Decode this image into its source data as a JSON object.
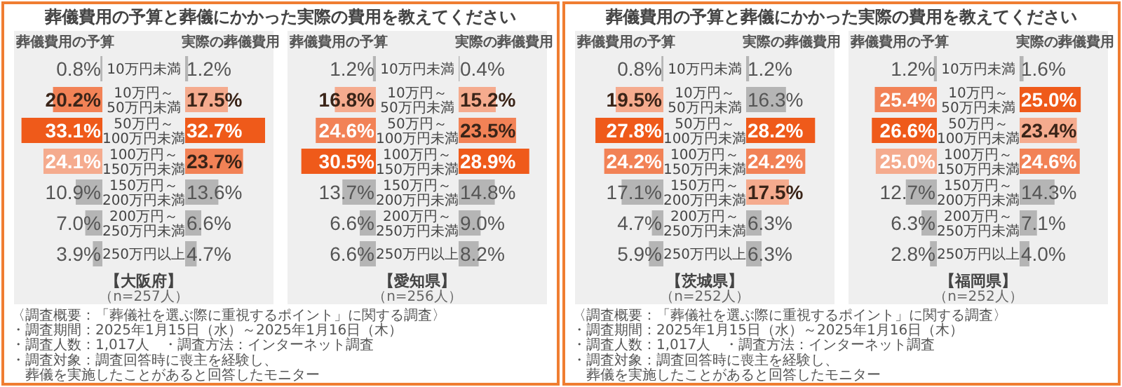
{
  "chart_data": [
    {
      "type": "bar",
      "orientation": "horizontal",
      "title": "葬儀費用の予算と葬儀にかかった実際の費用を教えてください",
      "xlabel": "葬儀費用の予算",
      "tick_labels": "y",
      "xlim": [
        35,
        0
      ],
      "categories": [
        "10万円未満",
        "10万円～50万円未満",
        "50万円～100万円未満",
        "100万円～150万円未満",
        "150万円～200万円未満",
        "200万円～250万円未満",
        "250万円以上"
      ],
      "values": [
        0.8,
        20.2,
        33.1,
        24.1,
        10.9,
        7.0,
        3.9
      ],
      "value_labels": [
        "0.8%",
        "20.2%",
        "33.1%",
        "24.1%",
        "10.9%",
        "7.0%",
        "3.9%"
      ],
      "colors": [
        "#b5b5b5",
        "#f28256",
        "#ef5a1a",
        "#f5ab8e",
        "#b5b5b5",
        "#b5b5b5",
        "#b5b5b5"
      ]
    },
    {
      "type": "bar",
      "orientation": "horizontal",
      "xlabel": "実際の葬儀費用",
      "tick_labels": false,
      "xlim": [
        0,
        35
      ],
      "categories": [
        null,
        null,
        null,
        null,
        null,
        null,
        null
      ],
      "values": [
        1.2,
        17.5,
        32.7,
        23.7,
        13.6,
        6.6,
        4.7
      ],
      "value_labels": [
        "1.2%",
        "17.5%",
        "32.7%",
        "23.7%",
        "13.6%",
        "6.6%",
        "4.7%"
      ],
      "colors": [
        "#b5b5b5",
        "#f5ab8e",
        "#ef5a1a",
        "#f28256",
        "#b5b5b5",
        "#b5b5b5",
        "#b5b5b5"
      ],
      "annotations": [
        "【大阪府】",
        "（n=257人）"
      ]
    },
    {
      "type": "bar",
      "orientation": "horizontal",
      "xlabel": "葬儀費用の予算",
      "tick_labels": "y",
      "xlim": [
        35,
        0
      ],
      "categories": [
        "10万円未満",
        "10万円～50万円未満",
        "50万円～100万円未満",
        "100万円～150万円未満",
        "150万円～200万円未満",
        "200万円～250万円未満",
        "250万円以上"
      ],
      "values": [
        1.2,
        16.8,
        24.6,
        30.5,
        13.7,
        6.6,
        6.6
      ],
      "value_labels": [
        "1.2%",
        "16.8%",
        "24.6%",
        "30.5%",
        "13.7%",
        "6.6%",
        "6.6%"
      ],
      "colors": [
        "#b5b5b5",
        "#f5ab8e",
        "#f28256",
        "#ef5a1a",
        "#b5b5b5",
        "#b5b5b5",
        "#b5b5b5"
      ]
    },
    {
      "type": "bar",
      "orientation": "horizontal",
      "xlabel": "実際の葬儀費用",
      "tick_labels": false,
      "xlim": [
        0,
        35
      ],
      "categories": [
        null,
        null,
        null,
        null,
        null,
        null,
        null
      ],
      "values": [
        0.4,
        15.2,
        23.5,
        28.9,
        14.8,
        9.0,
        8.2
      ],
      "value_labels": [
        "0.4%",
        "15.2%",
        "23.5%",
        "28.9%",
        "14.8%",
        "9.0%",
        "8.2%"
      ],
      "colors": [
        "#b5b5b5",
        "#f5ab8e",
        "#f28256",
        "#ef5a1a",
        "#b5b5b5",
        "#b5b5b5",
        "#b5b5b5"
      ],
      "annotations": [
        "【愛知県】",
        "（n=256人）",
        "〈調査概要：「葬儀社を選ぶ際に重視するポイント」に関する調査〉",
        "・調査期間：2025年1月15日（水）～2025年1月16日（木）",
        "・調査人数：1,017人",
        "・調査方法：インターネット調査",
        "・調査対象：調査回答時に喪主を経験し、葬儀を実施したことがあると回答したモニター"
      ]
    },
    {
      "type": "bar",
      "orientation": "horizontal",
      "title": "葬儀費用の予算と葬儀にかかった実際の費用を教えてください",
      "xlabel": "葬儀費用の予算",
      "tick_labels": "y",
      "xlim": [
        35,
        0
      ],
      "categories": [
        "10万円未満",
        "10万円～50万円未満",
        "50万円～100万円未満",
        "100万円～150万円未満",
        "150万円～200万円未満",
        "200万円～250万円未満",
        "250万円以上"
      ],
      "values": [
        0.8,
        19.5,
        27.8,
        24.2,
        17.1,
        4.7,
        5.9
      ],
      "value_labels": [
        "0.8%",
        "19.5%",
        "27.8%",
        "24.2%",
        "17.1%",
        "4.7%",
        "5.9%"
      ],
      "colors": [
        "#b5b5b5",
        "#f5ab8e",
        "#ef5a1a",
        "#f28256",
        "#b5b5b5",
        "#b5b5b5",
        "#b5b5b5"
      ]
    },
    {
      "type": "bar",
      "orientation": "horizontal",
      "xlabel": "実際の葬儀費用",
      "tick_labels": false,
      "xlim": [
        0,
        35
      ],
      "categories": [
        null,
        null,
        null,
        null,
        null,
        null,
        null
      ],
      "values": [
        1.2,
        16.3,
        28.2,
        24.2,
        17.5,
        6.3,
        6.3
      ],
      "value_labels": [
        "1.2%",
        "16.3%",
        "28.2%",
        "24.2%",
        "17.5%",
        "6.3%",
        "6.3%"
      ],
      "colors": [
        "#b5b5b5",
        "#b5b5b5",
        "#ef5a1a",
        "#f28256",
        "#f5ab8e",
        "#b5b5b5",
        "#b5b5b5"
      ],
      "annotations": [
        "【茨城県】",
        "（n=252人）"
      ]
    },
    {
      "type": "bar",
      "orientation": "horizontal",
      "xlabel": "葬儀費用の予算",
      "tick_labels": "y",
      "xlim": [
        35,
        0
      ],
      "categories": [
        "10万円未満",
        "10万円～50万円未満",
        "50万円～100万円未満",
        "100万円～150万円未満",
        "150万円～200万円未満",
        "200万円～250万円未満",
        "250万円以上"
      ],
      "values": [
        1.2,
        25.4,
        26.6,
        25.0,
        12.7,
        6.3,
        2.8
      ],
      "value_labels": [
        "1.2%",
        "25.4%",
        "26.6%",
        "25.0%",
        "12.7%",
        "6.3%",
        "2.8%"
      ],
      "colors": [
        "#b5b5b5",
        "#f28256",
        "#ef5a1a",
        "#f5ab8e",
        "#b5b5b5",
        "#b5b5b5",
        "#b5b5b5"
      ]
    },
    {
      "type": "bar",
      "orientation": "horizontal",
      "xlabel": "実際の葬儀費用",
      "tick_labels": false,
      "xlim": [
        0,
        35
      ],
      "categories": [
        null,
        null,
        null,
        null,
        null,
        null,
        null
      ],
      "values": [
        1.6,
        25.0,
        23.4,
        24.6,
        14.3,
        7.1,
        4.0
      ],
      "value_labels": [
        "1.6%",
        "25.0%",
        "23.4%",
        "24.6%",
        "14.3%",
        "7.1%",
        "4.0%"
      ],
      "colors": [
        "#b5b5b5",
        "#ef5a1a",
        "#f5ab8e",
        "#f28256",
        "#b5b5b5",
        "#b5b5b5",
        "#b5b5b5"
      ],
      "annotations": [
        "【福岡県】",
        "（n=252人）",
        "〈調査概要：「葬儀社を選ぶ際に重視するポイント」に関する調査〉",
        "・調査期間：2025年1月15日（水）～2025年1月16日（木）",
        "・調査人数：1,017人",
        "・調査方法：インターネット調査",
        "・調査対象：調査回答時に喪主を経験し、葬儀を実施したことがあると回答したモニター"
      ]
    }
  ]
}
